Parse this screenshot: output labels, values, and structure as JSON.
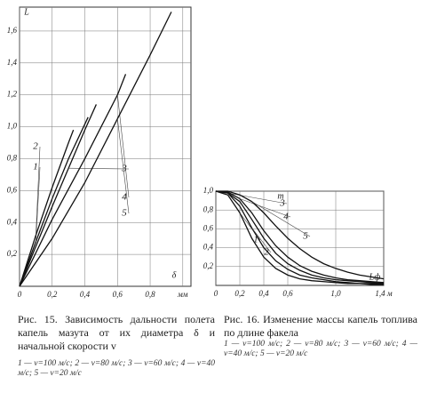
{
  "chart_data": [
    {
      "type": "line",
      "ylabel": "L",
      "xlabel": "δ",
      "xlim": [
        0,
        1.05
      ],
      "ylim": [
        0,
        1.75
      ],
      "grid": true,
      "color": "#111",
      "xticks": [
        0,
        {
          "value": 0.2,
          "label": "0,2"
        },
        {
          "value": 0.4,
          "label": "0,4"
        },
        {
          "value": 0.6,
          "label": "0,6"
        },
        {
          "value": 0.8,
          "label": "0,8"
        },
        {
          "value": 1.0,
          "label": "мм"
        }
      ],
      "yticks": [
        {
          "value": 0.2,
          "label": "0,2"
        },
        {
          "value": 0.4,
          "label": "0,4"
        },
        {
          "value": 0.6,
          "label": "0,6"
        },
        {
          "value": 0.8,
          "label": "0,8"
        },
        {
          "value": 1.0,
          "label": "1,0"
        },
        {
          "value": 1.2,
          "label": "1,2"
        },
        {
          "value": 1.4,
          "label": "1,4"
        },
        {
          "value": 1.6,
          "label": "1,6"
        }
      ],
      "series": [
        {
          "name": "1",
          "x": [
            0,
            0.1,
            0.2,
            0.3,
            0.42
          ],
          "values": [
            0,
            0.28,
            0.55,
            0.8,
            1.06
          ]
        },
        {
          "name": "2",
          "x": [
            0,
            0.1,
            0.2,
            0.3,
            0.33
          ],
          "values": [
            0,
            0.32,
            0.62,
            0.9,
            0.98
          ]
        },
        {
          "name": "3",
          "x": [
            0,
            0.1,
            0.2,
            0.3,
            0.4,
            0.47
          ],
          "values": [
            0,
            0.25,
            0.5,
            0.74,
            0.98,
            1.14
          ]
        },
        {
          "name": "4",
          "x": [
            0,
            0.2,
            0.4,
            0.6,
            0.65
          ],
          "values": [
            0,
            0.42,
            0.8,
            1.2,
            1.33
          ]
        },
        {
          "name": "5",
          "x": [
            0,
            0.2,
            0.4,
            0.6,
            0.8,
            0.93
          ],
          "values": [
            0,
            0.3,
            0.65,
            1.05,
            1.45,
            1.72
          ]
        }
      ],
      "caption": "Рис. 15. Зависимость дальности полета капель мазута от их диаметра δ и начальной скорости v",
      "note": "1 — v=100 м/с; 2 — v=80 м/с; 3 — v=60 м/с; 4 — v=40 м/с; 5 — v=20 м/с"
    },
    {
      "type": "line",
      "ylabel": "m",
      "xlabel": "Lф",
      "xlim": [
        0,
        1.4
      ],
      "ylim": [
        0,
        1.0
      ],
      "grid": true,
      "color": "#111",
      "xticks": [
        0,
        {
          "value": 0.2,
          "label": "0,2"
        },
        {
          "value": 0.4,
          "label": "0,4"
        },
        {
          "value": 0.6,
          "label": "0,6"
        },
        {
          "value": 1.0,
          "label": "1,0"
        },
        {
          "value": 1.4,
          "label": "1,4 м"
        }
      ],
      "yticks": [
        {
          "value": 0.2,
          "label": "0,2"
        },
        {
          "value": 0.4,
          "label": "0,4"
        },
        {
          "value": 0.6,
          "label": "0,6"
        },
        {
          "value": 0.8,
          "label": "0,8"
        },
        {
          "value": 1.0,
          "label": "1,0"
        }
      ],
      "series": [
        {
          "name": "1",
          "x": [
            0,
            0.1,
            0.2,
            0.3,
            0.4,
            0.5,
            0.6,
            0.7,
            0.8,
            0.9,
            1.0,
            1.1,
            1.2,
            1.3,
            1.4
          ],
          "values": [
            1,
            0.96,
            0.77,
            0.5,
            0.3,
            0.18,
            0.11,
            0.07,
            0.05,
            0.04,
            0.03,
            0.02,
            0.02,
            0.01,
            0.01
          ]
        },
        {
          "name": "2",
          "x": [
            0,
            0.1,
            0.2,
            0.3,
            0.4,
            0.5,
            0.6,
            0.7,
            0.8,
            0.9,
            1.0,
            1.1,
            1.2,
            1.3,
            1.4
          ],
          "values": [
            1,
            0.98,
            0.84,
            0.61,
            0.4,
            0.26,
            0.17,
            0.11,
            0.08,
            0.06,
            0.04,
            0.03,
            0.02,
            0.02,
            0.02
          ]
        },
        {
          "name": "3",
          "x": [
            0,
            0.1,
            0.2,
            0.3,
            0.4,
            0.5,
            0.6,
            0.7,
            0.8,
            0.9,
            1.0,
            1.1,
            1.2,
            1.3,
            1.4
          ],
          "values": [
            1,
            0.98,
            0.89,
            0.7,
            0.5,
            0.34,
            0.23,
            0.16,
            0.11,
            0.08,
            0.06,
            0.05,
            0.04,
            0.03,
            0.02
          ]
        },
        {
          "name": "4",
          "x": [
            0,
            0.1,
            0.2,
            0.3,
            0.4,
            0.5,
            0.6,
            0.7,
            0.8,
            0.9,
            1.0,
            1.1,
            1.2,
            1.3,
            1.4
          ],
          "values": [
            1,
            0.99,
            0.92,
            0.77,
            0.58,
            0.42,
            0.3,
            0.21,
            0.15,
            0.11,
            0.08,
            0.06,
            0.05,
            0.04,
            0.03
          ]
        },
        {
          "name": "5",
          "x": [
            0,
            0.1,
            0.2,
            0.3,
            0.4,
            0.5,
            0.6,
            0.7,
            0.8,
            0.9,
            1.0,
            1.1,
            1.2,
            1.3,
            1.4
          ],
          "values": [
            1,
            1.0,
            0.96,
            0.89,
            0.77,
            0.63,
            0.5,
            0.39,
            0.3,
            0.23,
            0.18,
            0.14,
            0.11,
            0.09,
            0.07
          ]
        }
      ],
      "caption": "Рис. 16. Изменение массы капель топлива по длине факела",
      "note": "1 — v=100 м/с; 2 — v=80 м/с; 3 — v=60 м/с; 4 — v=40 м/с; 5 — v=20 м/с"
    }
  ]
}
